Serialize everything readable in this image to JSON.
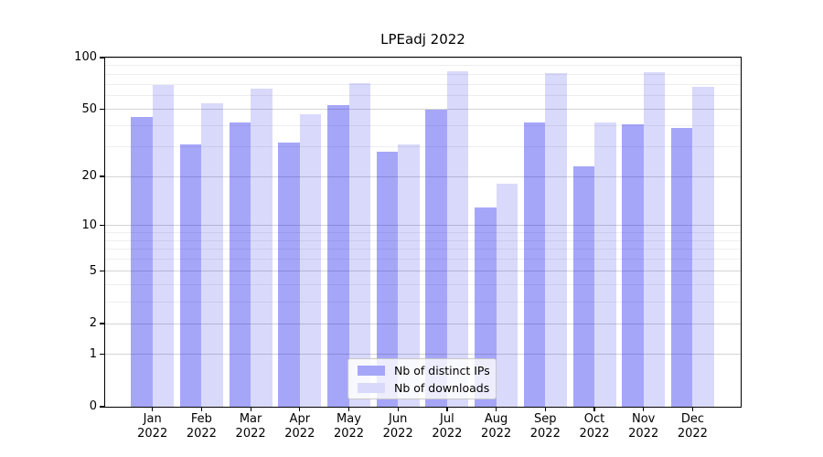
{
  "chart_data": {
    "type": "bar",
    "title": "LPEadj 2022",
    "categories": [
      "Jan\n2022",
      "Feb\n2022",
      "Mar\n2022",
      "Apr\n2022",
      "May\n2022",
      "Jun\n2022",
      "Jul\n2022",
      "Aug\n2022",
      "Sep\n2022",
      "Oct\n2022",
      "Nov\n2022",
      "Dec\n2022"
    ],
    "series": [
      {
        "name": "Nb of distinct IPs",
        "fill": "rgba(0,0,238,0.35)",
        "swatch_color": "#a6a6f8",
        "values": [
          45,
          31,
          42,
          32,
          53,
          28,
          50,
          13,
          42,
          23,
          41,
          39
        ]
      },
      {
        "name": "Nb of downloads",
        "fill": "rgba(0,0,238,0.15)",
        "swatch_color": "#d9d9fb",
        "values": [
          69,
          54,
          66,
          47,
          71,
          31,
          83,
          18,
          81,
          42,
          82,
          68
        ]
      }
    ],
    "yscale": "log1p",
    "ylim": [
      0,
      100
    ],
    "yticks": [
      100,
      50,
      20,
      10,
      5,
      2,
      1,
      0
    ],
    "minor_yticks": [
      3,
      4,
      6,
      7,
      8,
      9,
      30,
      40,
      60,
      70,
      80,
      90
    ],
    "grid": {
      "enabled": true,
      "major_color": "#d4d4d4",
      "minor_color": "#eeeeee"
    },
    "legend": {
      "position": "lower center"
    },
    "axis_color": "#000000"
  }
}
